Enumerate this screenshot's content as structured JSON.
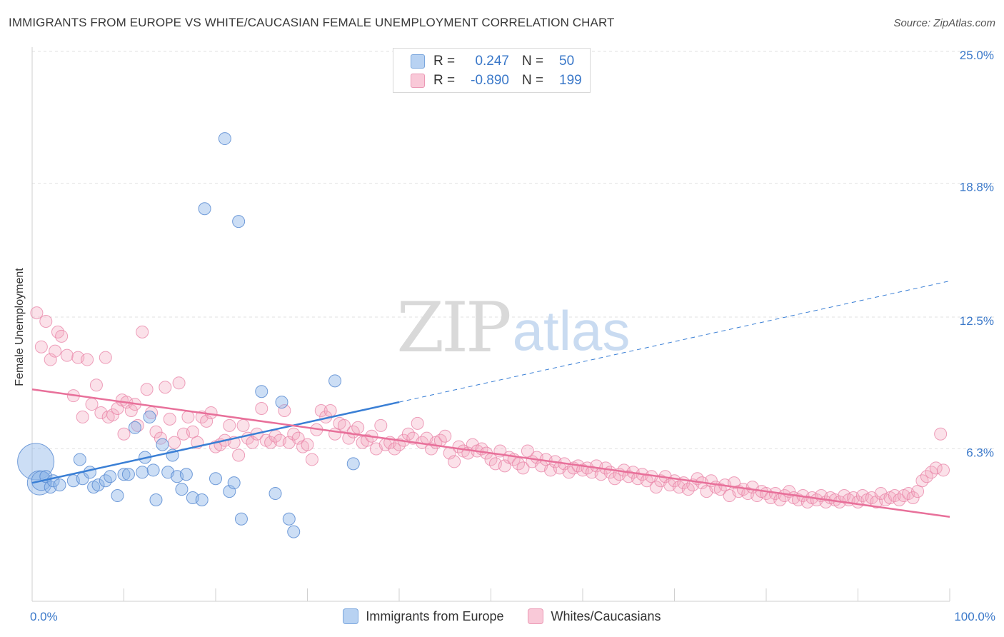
{
  "title": "IMMIGRANTS FROM EUROPE VS WHITE/CAUCASIAN FEMALE UNEMPLOYMENT CORRELATION CHART",
  "source": "Source: ZipAtlas.com",
  "watermark": {
    "zip": "ZIP",
    "atlas": "atlas"
  },
  "colors": {
    "blue": "#8fb6e8",
    "blue_line": "#3a7fd5",
    "pink": "#f4a8c0",
    "pink_line": "#e8709a",
    "tick": "#3a78c9"
  },
  "legend_box": [
    {
      "r_label": "R =",
      "r_value": "0.247",
      "n_label": "N =",
      "n_value": "50"
    },
    {
      "r_label": "R =",
      "r_value": "-0.890",
      "n_label": "N =",
      "n_value": "199"
    }
  ],
  "chart_data": {
    "type": "scatter",
    "title": "IMMIGRANTS FROM EUROPE VS WHITE/CAUCASIAN FEMALE UNEMPLOYMENT CORRELATION CHART",
    "xlabel": "",
    "ylabel": "Female Unemployment",
    "xlim": [
      0,
      100
    ],
    "ylim": [
      0,
      25
    ],
    "x_tick_labels": [
      "0.0%",
      "100.0%"
    ],
    "y_ticks": [
      6.3,
      12.5,
      18.8,
      25.0
    ],
    "y_tick_labels": [
      "6.3%",
      "12.5%",
      "18.8%",
      "25.0%"
    ],
    "grid": true,
    "legend_placement": "bottom",
    "series": [
      {
        "name": "Immigrants from Europe",
        "color": "#8fb6e8",
        "points": [
          [
            0.4,
            5.9,
            3
          ],
          [
            0.8,
            4.9,
            2
          ],
          [
            1.0,
            5.0,
            1.6
          ],
          [
            1.5,
            5.2,
            1
          ],
          [
            2.0,
            4.7,
            1
          ],
          [
            2.3,
            5.0,
            1
          ],
          [
            3.0,
            4.8,
            1
          ],
          [
            4.5,
            5.0,
            1
          ],
          [
            5.2,
            6.0,
            1
          ],
          [
            5.5,
            5.1,
            1
          ],
          [
            6.3,
            5.4,
            1
          ],
          [
            6.7,
            4.7,
            1
          ],
          [
            7.2,
            4.8,
            1
          ],
          [
            8.0,
            5.0,
            1
          ],
          [
            8.5,
            5.2,
            1
          ],
          [
            9.3,
            4.3,
            1
          ],
          [
            10.0,
            5.3,
            1
          ],
          [
            10.5,
            5.3,
            1
          ],
          [
            11.2,
            7.5,
            1
          ],
          [
            12.0,
            5.4,
            1
          ],
          [
            12.3,
            6.1,
            1
          ],
          [
            12.8,
            8.0,
            1
          ],
          [
            13.2,
            5.5,
            1
          ],
          [
            13.5,
            4.1,
            1
          ],
          [
            14.2,
            6.7,
            1
          ],
          [
            14.8,
            5.4,
            1
          ],
          [
            15.3,
            6.2,
            1
          ],
          [
            15.8,
            5.2,
            1
          ],
          [
            16.3,
            4.6,
            1
          ],
          [
            16.8,
            5.3,
            1
          ],
          [
            17.5,
            4.2,
            1
          ],
          [
            18.5,
            4.1,
            1
          ],
          [
            18.8,
            17.8,
            1
          ],
          [
            20.0,
            5.1,
            1
          ],
          [
            21.0,
            21.1,
            1
          ],
          [
            21.5,
            4.5,
            1
          ],
          [
            22.0,
            4.9,
            1
          ],
          [
            22.5,
            17.2,
            1
          ],
          [
            22.8,
            3.2,
            1
          ],
          [
            25.0,
            9.2,
            1
          ],
          [
            26.5,
            4.4,
            1
          ],
          [
            27.2,
            8.7,
            1
          ],
          [
            28.0,
            3.2,
            1
          ],
          [
            28.5,
            2.6,
            1
          ],
          [
            33.0,
            9.7,
            1
          ],
          [
            35.0,
            5.8,
            1
          ]
        ],
        "trend": {
          "x": [
            0,
            40
          ],
          "y": [
            4.9,
            8.7
          ]
        },
        "trend_extension": {
          "x": [
            40,
            100
          ],
          "y": [
            8.7,
            14.4
          ]
        }
      },
      {
        "name": "Whites/Caucasians",
        "color": "#f4a8c0",
        "points": [
          [
            0.5,
            12.9
          ],
          [
            1.0,
            11.3
          ],
          [
            1.5,
            12.5
          ],
          [
            2.0,
            10.7
          ],
          [
            2.5,
            11.1
          ],
          [
            2.8,
            12.0
          ],
          [
            3.2,
            11.8
          ],
          [
            3.8,
            10.9
          ],
          [
            4.5,
            9.0
          ],
          [
            5.0,
            10.8
          ],
          [
            5.5,
            8.0
          ],
          [
            6.0,
            10.7
          ],
          [
            6.5,
            8.6
          ],
          [
            7.0,
            9.5
          ],
          [
            7.5,
            8.2
          ],
          [
            8.0,
            10.8
          ],
          [
            8.3,
            8.0
          ],
          [
            8.8,
            8.1
          ],
          [
            9.3,
            8.4
          ],
          [
            9.8,
            8.8
          ],
          [
            10.0,
            7.2
          ],
          [
            10.3,
            8.7
          ],
          [
            10.8,
            8.3
          ],
          [
            11.2,
            8.6
          ],
          [
            11.5,
            7.6
          ],
          [
            12.0,
            12.0
          ],
          [
            12.5,
            9.3
          ],
          [
            13.0,
            8.2
          ],
          [
            13.5,
            7.3
          ],
          [
            14.0,
            7.0
          ],
          [
            14.5,
            9.4
          ],
          [
            15.0,
            7.9
          ],
          [
            15.5,
            6.8
          ],
          [
            16.0,
            9.6
          ],
          [
            16.5,
            7.2
          ],
          [
            17.0,
            8.0
          ],
          [
            17.5,
            7.3
          ],
          [
            18.0,
            6.8
          ],
          [
            18.5,
            8.0
          ],
          [
            19.0,
            7.8
          ],
          [
            19.5,
            8.2
          ],
          [
            20.0,
            6.6
          ],
          [
            20.5,
            6.7
          ],
          [
            21.0,
            6.9
          ],
          [
            21.5,
            7.6
          ],
          [
            22.0,
            6.8
          ],
          [
            22.5,
            6.2
          ],
          [
            23.0,
            7.6
          ],
          [
            23.5,
            7.0
          ],
          [
            24.0,
            6.8
          ],
          [
            24.5,
            7.2
          ],
          [
            25.0,
            8.4
          ],
          [
            25.5,
            6.9
          ],
          [
            26.0,
            6.8
          ],
          [
            26.5,
            7.1
          ],
          [
            27.0,
            6.9
          ],
          [
            27.5,
            8.3
          ],
          [
            28.0,
            6.8
          ],
          [
            28.5,
            7.2
          ],
          [
            29.0,
            7.0
          ],
          [
            29.5,
            6.6
          ],
          [
            30.0,
            6.7
          ],
          [
            30.5,
            6.0
          ],
          [
            31.0,
            7.4
          ],
          [
            31.5,
            8.3
          ],
          [
            32.0,
            8.0
          ],
          [
            32.5,
            8.3
          ],
          [
            33.0,
            7.2
          ],
          [
            33.5,
            7.7
          ],
          [
            34.0,
            7.6
          ],
          [
            34.5,
            7.0
          ],
          [
            35.0,
            7.3
          ],
          [
            35.5,
            7.5
          ],
          [
            36.0,
            6.8
          ],
          [
            36.5,
            6.9
          ],
          [
            37.0,
            7.1
          ],
          [
            37.5,
            6.5
          ],
          [
            38.0,
            7.6
          ],
          [
            38.5,
            6.7
          ],
          [
            39.0,
            6.8
          ],
          [
            39.5,
            6.5
          ],
          [
            40.0,
            6.7
          ],
          [
            40.5,
            6.9
          ],
          [
            41.0,
            7.2
          ],
          [
            41.5,
            7.0
          ],
          [
            42.0,
            7.7
          ],
          [
            42.5,
            6.8
          ],
          [
            43.0,
            7.0
          ],
          [
            43.5,
            6.5
          ],
          [
            44.0,
            6.8
          ],
          [
            44.5,
            6.9
          ],
          [
            45.0,
            7.1
          ],
          [
            45.5,
            6.3
          ],
          [
            46.0,
            5.9
          ],
          [
            46.5,
            6.6
          ],
          [
            47.0,
            6.4
          ],
          [
            47.5,
            6.3
          ],
          [
            48.0,
            6.7
          ],
          [
            48.5,
            6.4
          ],
          [
            49.0,
            6.5
          ],
          [
            49.5,
            6.3
          ],
          [
            50.0,
            6.0
          ],
          [
            50.5,
            5.8
          ],
          [
            51.0,
            6.4
          ],
          [
            51.5,
            5.7
          ],
          [
            52.0,
            6.1
          ],
          [
            52.5,
            6.0
          ],
          [
            53.0,
            5.8
          ],
          [
            53.5,
            5.6
          ],
          [
            54.0,
            6.4
          ],
          [
            54.5,
            5.9
          ],
          [
            55.0,
            6.1
          ],
          [
            55.5,
            5.7
          ],
          [
            56.0,
            6.0
          ],
          [
            56.5,
            5.5
          ],
          [
            57.0,
            5.9
          ],
          [
            57.5,
            5.6
          ],
          [
            58.0,
            5.8
          ],
          [
            58.5,
            5.4
          ],
          [
            59.0,
            5.6
          ],
          [
            59.5,
            5.7
          ],
          [
            60.0,
            5.5
          ],
          [
            60.5,
            5.6
          ],
          [
            61.0,
            5.4
          ],
          [
            61.5,
            5.7
          ],
          [
            62.0,
            5.3
          ],
          [
            62.5,
            5.6
          ],
          [
            63.0,
            5.4
          ],
          [
            63.5,
            5.1
          ],
          [
            64.0,
            5.3
          ],
          [
            64.5,
            5.5
          ],
          [
            65.0,
            5.2
          ],
          [
            65.5,
            5.4
          ],
          [
            66.0,
            5.1
          ],
          [
            66.5,
            5.3
          ],
          [
            67.0,
            5.0
          ],
          [
            67.5,
            5.2
          ],
          [
            68.0,
            4.7
          ],
          [
            68.5,
            5.0
          ],
          [
            69.0,
            5.2
          ],
          [
            69.5,
            4.8
          ],
          [
            70.0,
            5.0
          ],
          [
            70.5,
            4.7
          ],
          [
            71.0,
            4.9
          ],
          [
            71.5,
            4.6
          ],
          [
            72.0,
            4.8
          ],
          [
            72.5,
            5.1
          ],
          [
            73.0,
            4.9
          ],
          [
            73.5,
            4.5
          ],
          [
            74.0,
            5.0
          ],
          [
            74.5,
            4.7
          ],
          [
            75.0,
            4.6
          ],
          [
            75.5,
            4.8
          ],
          [
            76.0,
            4.3
          ],
          [
            76.5,
            4.9
          ],
          [
            77.0,
            4.5
          ],
          [
            77.5,
            4.6
          ],
          [
            78.0,
            4.4
          ],
          [
            78.5,
            4.7
          ],
          [
            79.0,
            4.3
          ],
          [
            79.5,
            4.5
          ],
          [
            80.0,
            4.4
          ],
          [
            80.5,
            4.2
          ],
          [
            81.0,
            4.4
          ],
          [
            81.5,
            4.1
          ],
          [
            82.0,
            4.3
          ],
          [
            82.5,
            4.5
          ],
          [
            83.0,
            4.2
          ],
          [
            83.5,
            4.1
          ],
          [
            84.0,
            4.3
          ],
          [
            84.5,
            4.0
          ],
          [
            85.0,
            4.2
          ],
          [
            85.5,
            4.1
          ],
          [
            86.0,
            4.3
          ],
          [
            86.5,
            4.0
          ],
          [
            87.0,
            4.2
          ],
          [
            87.5,
            4.1
          ],
          [
            88.0,
            4.0
          ],
          [
            88.5,
            4.3
          ],
          [
            89.0,
            4.1
          ],
          [
            89.5,
            4.2
          ],
          [
            90.0,
            4.0
          ],
          [
            90.5,
            4.3
          ],
          [
            91.0,
            4.1
          ],
          [
            91.5,
            4.2
          ],
          [
            92.0,
            4.0
          ],
          [
            92.5,
            4.4
          ],
          [
            93.0,
            4.1
          ],
          [
            93.5,
            4.2
          ],
          [
            94.0,
            4.3
          ],
          [
            94.5,
            4.1
          ],
          [
            95.0,
            4.3
          ],
          [
            95.5,
            4.4
          ],
          [
            96.0,
            4.2
          ],
          [
            96.5,
            4.5
          ],
          [
            97.0,
            5.0
          ],
          [
            97.5,
            5.2
          ],
          [
            98.0,
            5.4
          ],
          [
            98.5,
            5.6
          ],
          [
            99.0,
            7.2
          ],
          [
            99.3,
            5.5
          ]
        ],
        "trend": {
          "x": [
            0,
            100
          ],
          "y": [
            9.3,
            3.3
          ]
        }
      }
    ]
  }
}
